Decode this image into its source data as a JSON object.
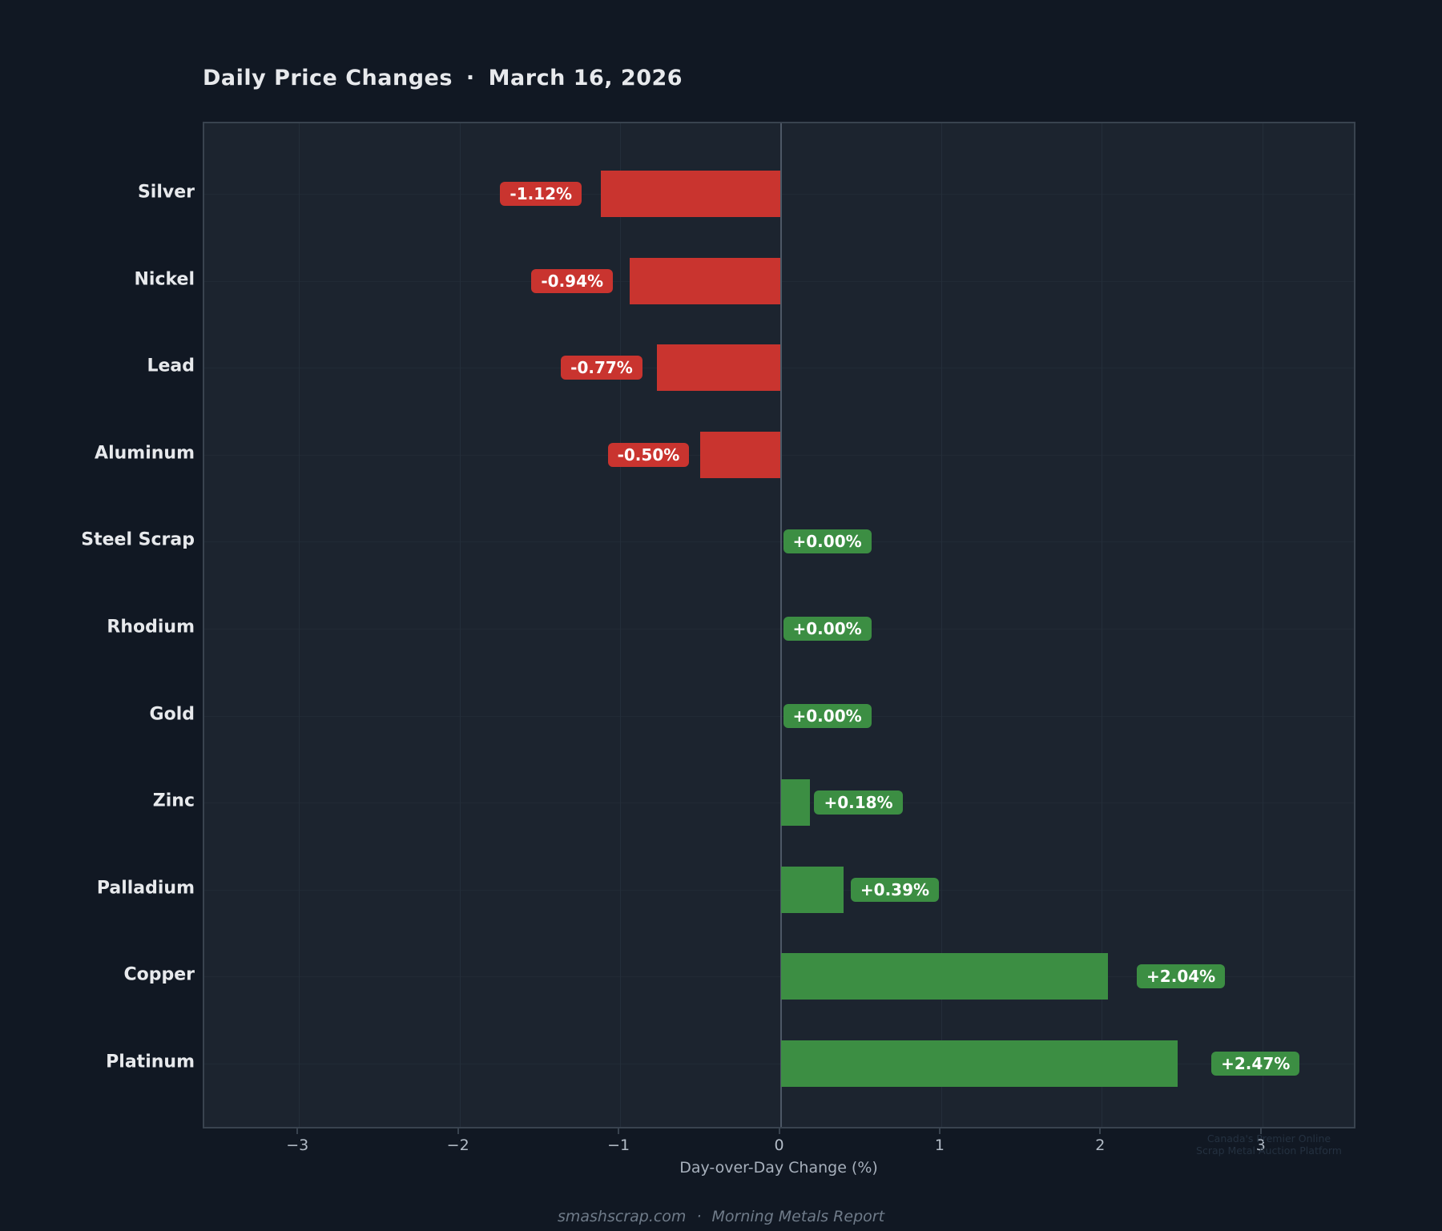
{
  "title": {
    "text": "Daily Price Changes",
    "separator": "·",
    "date": "March 16, 2026"
  },
  "chart_data": {
    "type": "bar",
    "orientation": "horizontal",
    "title": "Daily Price Changes · March 16, 2026",
    "categories": [
      "Silver",
      "Nickel",
      "Lead",
      "Aluminum",
      "Steel Scrap",
      "Rhodium",
      "Gold",
      "Zinc",
      "Palladium",
      "Copper",
      "Platinum"
    ],
    "values": [
      -1.12,
      -0.94,
      -0.77,
      -0.5,
      0.0,
      0.0,
      0.0,
      0.18,
      0.39,
      2.04,
      2.47
    ],
    "value_labels": [
      "-1.12%",
      "-0.94%",
      "-0.77%",
      "-0.50%",
      "+0.00%",
      "+0.00%",
      "+0.00%",
      "+0.18%",
      "+0.39%",
      "+2.04%",
      "+2.47%"
    ],
    "xlabel": "Day-over-Day Change (%)",
    "xticks": [
      -3,
      -2,
      -1,
      0,
      1,
      2,
      3
    ],
    "xtick_labels": [
      "−3",
      "−2",
      "−1",
      "0",
      "1",
      "2",
      "3"
    ],
    "xlim": [
      -3.59,
      3.59
    ],
    "grid": true,
    "legend": "none",
    "colors": {
      "positive": "#3c8e43",
      "negative": "#c9342f",
      "background": "#111823",
      "plot_background": "#1c242f",
      "zero_line": "#4d5866"
    }
  },
  "footer": {
    "site": "smashscrap.com",
    "separator": "·",
    "report": "Morning Metals Report"
  },
  "watermark": {
    "line1": "Canada's Premier Online",
    "line2": "Scrap Metal Auction Platform"
  }
}
